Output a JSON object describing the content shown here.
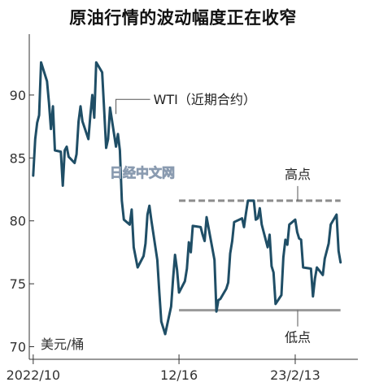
{
  "chart_data": {
    "type": "line",
    "title": "原油行情的波动幅度正在收窄",
    "unit_label": "美元/桶",
    "series": [
      {
        "name": "WTI",
        "color": "#1f4e66",
        "points": [
          [
            "2022-10-03",
            83.6
          ],
          [
            "2022-10-04",
            86.5
          ],
          [
            "2022-10-05",
            87.8
          ],
          [
            "2022-10-06",
            88.4
          ],
          [
            "2022-10-07",
            92.6
          ],
          [
            "2022-10-10",
            91.1
          ],
          [
            "2022-10-11",
            89.4
          ],
          [
            "2022-10-12",
            87.3
          ],
          [
            "2022-10-13",
            89.1
          ],
          [
            "2022-10-14",
            85.6
          ],
          [
            "2022-10-17",
            85.5
          ],
          [
            "2022-10-18",
            82.8
          ],
          [
            "2022-10-19",
            85.6
          ],
          [
            "2022-10-20",
            85.9
          ],
          [
            "2022-10-21",
            85.1
          ],
          [
            "2022-10-24",
            84.6
          ],
          [
            "2022-10-25",
            85.3
          ],
          [
            "2022-10-26",
            87.9
          ],
          [
            "2022-10-27",
            89.1
          ],
          [
            "2022-10-28",
            87.9
          ],
          [
            "2022-10-31",
            86.5
          ],
          [
            "2022-11-01",
            88.4
          ],
          [
            "2022-11-02",
            90.0
          ],
          [
            "2022-11-03",
            88.2
          ],
          [
            "2022-11-04",
            92.6
          ],
          [
            "2022-11-07",
            91.8
          ],
          [
            "2022-11-08",
            88.9
          ],
          [
            "2022-11-09",
            85.8
          ],
          [
            "2022-11-10",
            86.5
          ],
          [
            "2022-11-11",
            89.0
          ],
          [
            "2022-11-14",
            85.9
          ],
          [
            "2022-11-15",
            86.9
          ],
          [
            "2022-11-16",
            85.6
          ],
          [
            "2022-11-17",
            81.6
          ],
          [
            "2022-11-18",
            80.1
          ],
          [
            "2022-11-21",
            79.7
          ],
          [
            "2022-11-22",
            80.9
          ],
          [
            "2022-11-23",
            77.9
          ],
          [
            "2022-11-25",
            76.3
          ],
          [
            "2022-11-28",
            77.2
          ],
          [
            "2022-11-29",
            78.2
          ],
          [
            "2022-11-30",
            80.5
          ],
          [
            "2022-12-01",
            81.2
          ],
          [
            "2022-12-02",
            80.0
          ],
          [
            "2022-12-05",
            76.9
          ],
          [
            "2022-12-06",
            74.3
          ],
          [
            "2022-12-07",
            72.0
          ],
          [
            "2022-12-08",
            71.5
          ],
          [
            "2022-12-09",
            71.0
          ],
          [
            "2022-12-12",
            73.2
          ],
          [
            "2022-12-13",
            75.4
          ],
          [
            "2022-12-14",
            77.3
          ],
          [
            "2022-12-15",
            76.1
          ],
          [
            "2022-12-16",
            74.3
          ],
          [
            "2022-12-19",
            75.2
          ],
          [
            "2022-12-20",
            76.2
          ],
          [
            "2022-12-21",
            78.3
          ],
          [
            "2022-12-22",
            77.5
          ],
          [
            "2022-12-23",
            79.6
          ],
          [
            "2022-12-27",
            79.5
          ],
          [
            "2022-12-28",
            78.9
          ],
          [
            "2022-12-29",
            78.4
          ],
          [
            "2022-12-30",
            80.3
          ],
          [
            "2023-01-03",
            76.9
          ],
          [
            "2023-01-04",
            72.8
          ],
          [
            "2023-01-05",
            73.7
          ],
          [
            "2023-01-06",
            73.8
          ],
          [
            "2023-01-09",
            74.6
          ],
          [
            "2023-01-10",
            75.1
          ],
          [
            "2023-01-11",
            77.4
          ],
          [
            "2023-01-12",
            78.4
          ],
          [
            "2023-01-13",
            79.9
          ],
          [
            "2023-01-17",
            80.2
          ],
          [
            "2023-01-18",
            79.5
          ],
          [
            "2023-01-19",
            80.6
          ],
          [
            "2023-01-20",
            81.6
          ],
          [
            "2023-01-23",
            81.6
          ],
          [
            "2023-01-24",
            80.1
          ],
          [
            "2023-01-25",
            80.2
          ],
          [
            "2023-01-26",
            81.0
          ],
          [
            "2023-01-27",
            79.7
          ],
          [
            "2023-01-30",
            77.9
          ],
          [
            "2023-01-31",
            78.9
          ],
          [
            "2023-02-01",
            76.4
          ],
          [
            "2023-02-02",
            75.9
          ],
          [
            "2023-02-03",
            73.4
          ],
          [
            "2023-02-06",
            74.1
          ],
          [
            "2023-02-07",
            77.1
          ],
          [
            "2023-02-08",
            78.5
          ],
          [
            "2023-02-09",
            78.1
          ],
          [
            "2023-02-10",
            79.7
          ],
          [
            "2023-02-13",
            80.1
          ],
          [
            "2023-02-14",
            79.1
          ],
          [
            "2023-02-15",
            78.6
          ],
          [
            "2023-02-16",
            78.5
          ],
          [
            "2023-02-17",
            76.3
          ],
          [
            "2023-02-21",
            76.2
          ],
          [
            "2023-02-22",
            74.0
          ],
          [
            "2023-02-23",
            75.4
          ],
          [
            "2023-02-24",
            76.3
          ],
          [
            "2023-02-27",
            75.7
          ],
          [
            "2023-02-28",
            77.0
          ],
          [
            "2023-03-01",
            77.6
          ],
          [
            "2023-03-02",
            78.2
          ],
          [
            "2023-03-03",
            79.7
          ],
          [
            "2023-03-06",
            80.5
          ],
          [
            "2023-03-07",
            77.6
          ],
          [
            "2023-03-08",
            76.7
          ]
        ]
      }
    ],
    "ylim": [
      70,
      95
    ],
    "y_ticks": [
      70,
      75,
      80,
      85,
      90
    ],
    "xlim": [
      "2022-10-01",
      "2023-03-10"
    ],
    "x_ticks": [
      {
        "date": "2022-10-03",
        "label": "2022/10"
      },
      {
        "date": "2022-12-16",
        "label": "12/16"
      },
      {
        "date": "2023-02-13",
        "label": "23/2/13"
      }
    ],
    "reference_lines": [
      {
        "name": "高点",
        "value": 81.6,
        "start": "2022-12-16",
        "end": "2023-03-08",
        "style": "dashed",
        "color": "#8c8c8c"
      },
      {
        "name": "低点",
        "value": 72.9,
        "start": "2022-12-16",
        "end": "2023-03-08",
        "style": "solid",
        "color": "#9a9a9a"
      }
    ],
    "annotations": [
      {
        "text": "WTI（近期合约）",
        "target_date": "2022-11-14",
        "target_value": 89.4
      }
    ],
    "watermark": "日经中文网",
    "grid": false
  }
}
